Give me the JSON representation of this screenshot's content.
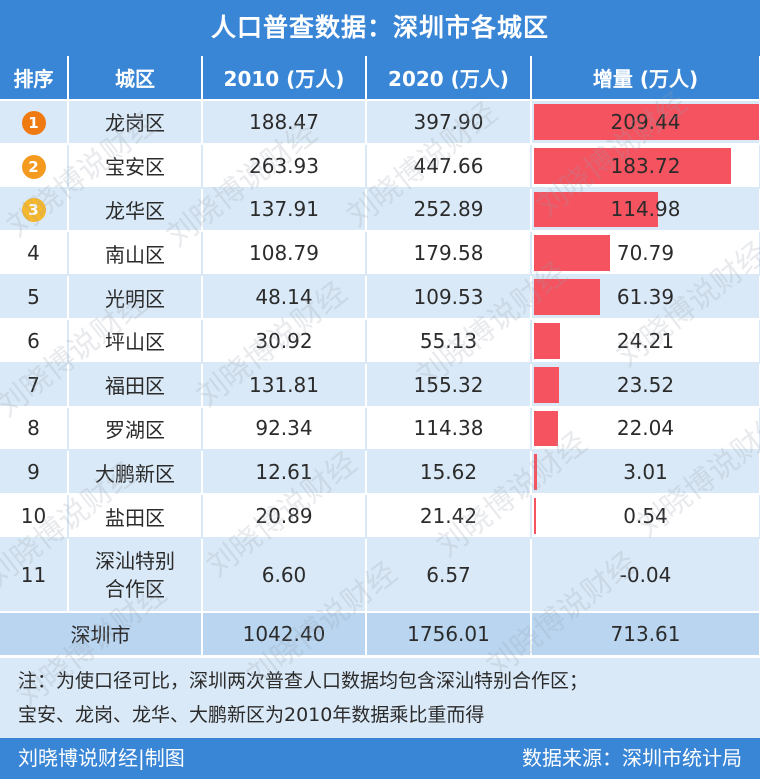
{
  "title": "人口普查数据：深圳市各城区",
  "headers": [
    "排序",
    "城区",
    "2010 (万人)",
    "2020 (万人)",
    "增量 (万人)"
  ],
  "chart_data": {
    "type": "table",
    "title": "人口普查数据：深圳市各城区",
    "columns": [
      "排序",
      "城区",
      "2010 (万人)",
      "2020 (万人)",
      "增量 (万人)"
    ],
    "rows": [
      {
        "rank": "1",
        "district": "龙岗区",
        "y2010": "188.47",
        "y2020": "397.90",
        "increase": "209.44",
        "increase_value": 209.44
      },
      {
        "rank": "2",
        "district": "宝安区",
        "y2010": "263.93",
        "y2020": "447.66",
        "increase": "183.72",
        "increase_value": 183.72
      },
      {
        "rank": "3",
        "district": "龙华区",
        "y2010": "137.91",
        "y2020": "252.89",
        "increase": "114.98",
        "increase_value": 114.98
      },
      {
        "rank": "4",
        "district": "南山区",
        "y2010": "108.79",
        "y2020": "179.58",
        "increase": "70.79",
        "increase_value": 70.79
      },
      {
        "rank": "5",
        "district": "光明区",
        "y2010": "48.14",
        "y2020": "109.53",
        "increase": "61.39",
        "increase_value": 61.39
      },
      {
        "rank": "6",
        "district": "坪山区",
        "y2010": "30.92",
        "y2020": "55.13",
        "increase": "24.21",
        "increase_value": 24.21
      },
      {
        "rank": "7",
        "district": "福田区",
        "y2010": "131.81",
        "y2020": "155.32",
        "increase": "23.52",
        "increase_value": 23.52
      },
      {
        "rank": "8",
        "district": "罗湖区",
        "y2010": "92.34",
        "y2020": "114.38",
        "increase": "22.04",
        "increase_value": 22.04
      },
      {
        "rank": "9",
        "district": "大鹏新区",
        "y2010": "12.61",
        "y2020": "15.62",
        "increase": "3.01",
        "increase_value": 3.01
      },
      {
        "rank": "10",
        "district": "盐田区",
        "y2010": "20.89",
        "y2020": "21.42",
        "increase": "0.54",
        "increase_value": 0.54
      },
      {
        "rank": "11",
        "district": "深汕特别合作区",
        "y2010": "6.60",
        "y2020": "6.57",
        "increase": "-0.04",
        "increase_value": -0.04
      }
    ],
    "total": {
      "district": "深圳市",
      "y2010": "1042.40",
      "y2020": "1756.01",
      "increase": "713.61"
    },
    "bar_max": 209.44,
    "bar_color": "#f4535f"
  },
  "note_line1": "注：为使口径可比，深圳两次普查人口数据均包含深汕特别合作区；",
  "note_line2": "宝安、龙岗、龙华、大鹏新区为2010年数据乘比重而得",
  "footer_left": "刘晓博说财经|制图",
  "footer_right": "数据来源：深圳市统计局",
  "watermark": "刘晓博说财经",
  "colors": {
    "header": "#3a86d6",
    "row_alt": "#dae9f7",
    "total_row": "#b9d5f0",
    "rank1": "#f07a12",
    "rank2": "#f39a1f",
    "rank3": "#f7b829"
  }
}
